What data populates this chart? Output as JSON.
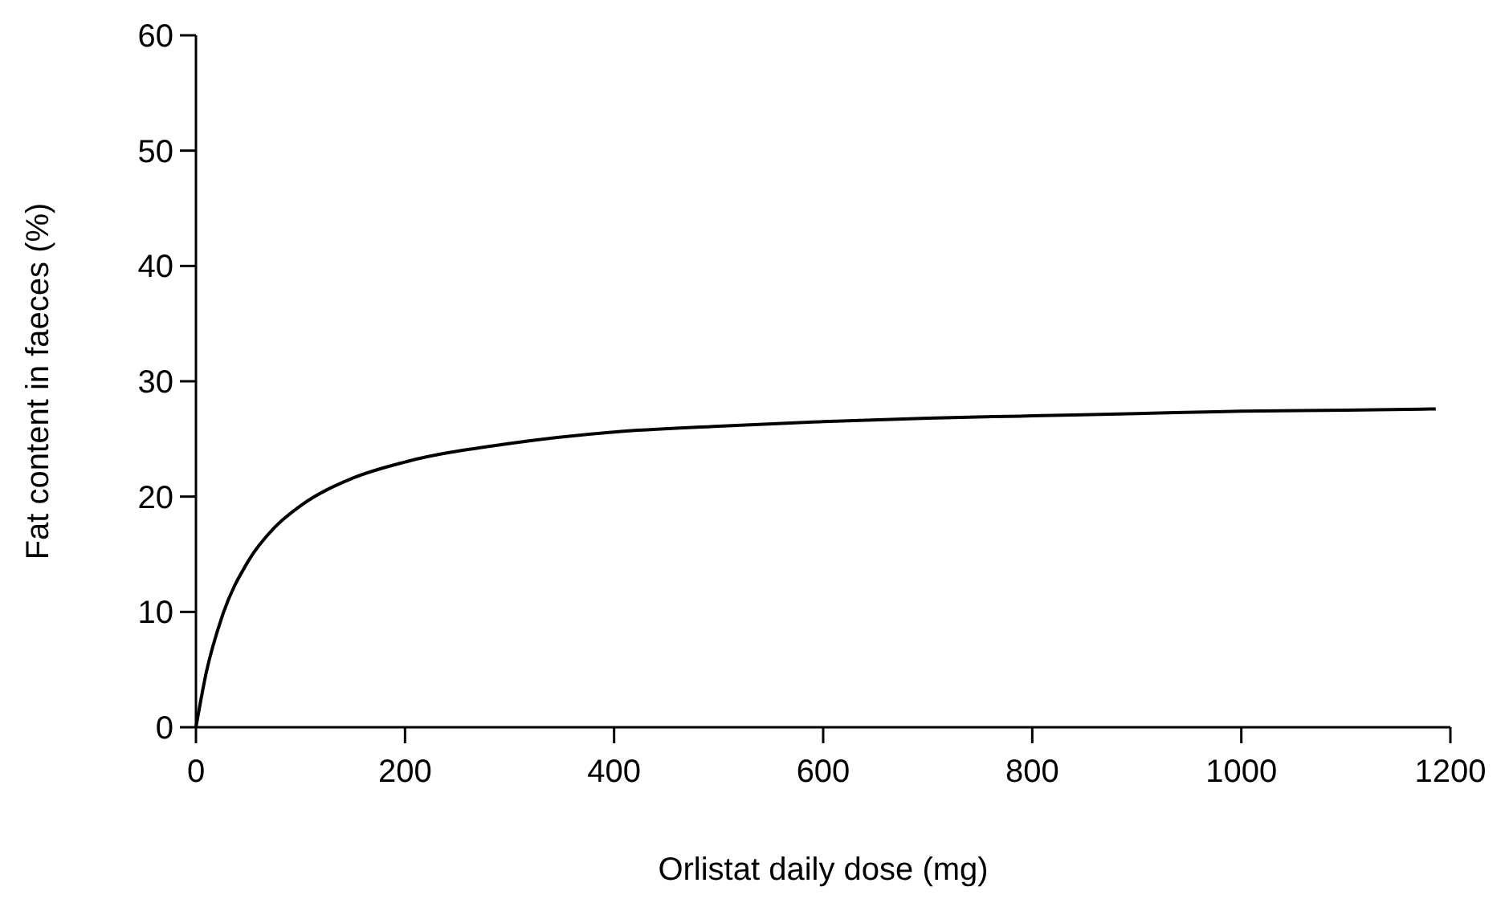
{
  "chart_data": {
    "type": "line",
    "xlabel": "Orlistat daily dose (mg)",
    "ylabel": "Fat content in faeces (%)",
    "xlim": [
      0,
      1200
    ],
    "ylim": [
      0,
      60
    ],
    "xticks": [
      0,
      200,
      400,
      600,
      800,
      1000,
      1200
    ],
    "yticks": [
      0,
      10,
      20,
      30,
      40,
      50,
      60
    ],
    "grid": false,
    "marker": "none",
    "line_style": "solid",
    "series": [
      {
        "color": "#000000",
        "x": [
          0,
          10,
          25,
          50,
          75,
          100,
          150,
          200,
          300,
          400,
          500,
          600,
          700,
          800,
          900,
          1000,
          1100,
          1186
        ],
        "values": [
          0,
          4.8,
          9.6,
          14.4,
          17.3,
          19.2,
          21.6,
          23.0,
          24.6,
          25.6,
          26.1,
          26.5,
          26.8,
          27.0,
          27.2,
          27.4,
          27.5,
          27.6
        ]
      }
    ]
  }
}
